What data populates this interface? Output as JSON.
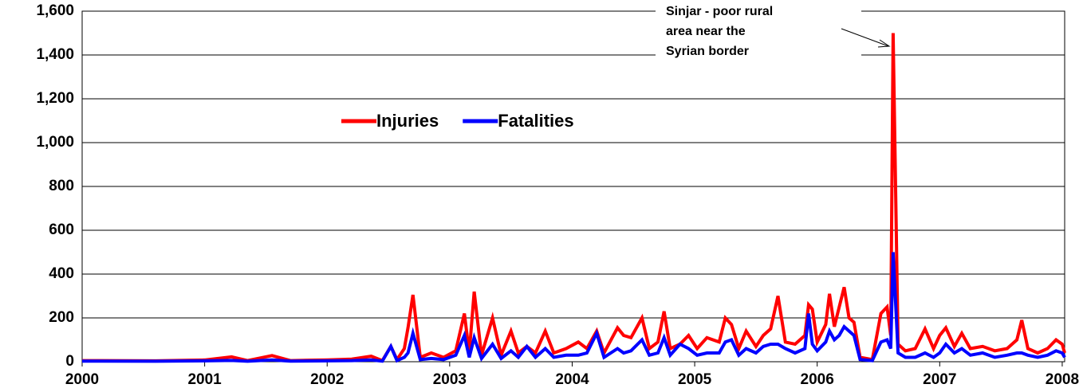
{
  "chart_data": {
    "type": "line",
    "x": [
      2000.0,
      2000.6,
      2001.0,
      2001.22,
      2001.35,
      2001.55,
      2001.7,
      2002.0,
      2002.2,
      2002.36,
      2002.45,
      2002.52,
      2002.57,
      2002.63,
      2002.66,
      2002.7,
      2002.76,
      2002.85,
      2002.95,
      2003.05,
      2003.12,
      2003.16,
      2003.2,
      2003.26,
      2003.35,
      2003.42,
      2003.5,
      2003.56,
      2003.63,
      2003.7,
      2003.78,
      2003.85,
      2003.95,
      2004.05,
      2004.12,
      2004.2,
      2004.26,
      2004.37,
      2004.42,
      2004.48,
      2004.57,
      2004.63,
      2004.7,
      2004.75,
      2004.8,
      2004.88,
      2004.95,
      2005.02,
      2005.1,
      2005.2,
      2005.25,
      2005.3,
      2005.36,
      2005.42,
      2005.5,
      2005.56,
      2005.62,
      2005.68,
      2005.74,
      2005.82,
      2005.9,
      2005.93,
      2005.96,
      2006.0,
      2006.07,
      2006.1,
      2006.14,
      2006.18,
      2006.22,
      2006.26,
      2006.3,
      2006.35,
      2006.45,
      2006.52,
      2006.57,
      2006.6,
      2006.62,
      2006.66,
      2006.72,
      2006.8,
      2006.88,
      2006.95,
      2007.0,
      2007.05,
      2007.12,
      2007.18,
      2007.25,
      2007.35,
      2007.45,
      2007.55,
      2007.63,
      2007.67,
      2007.72,
      2007.8,
      2007.88,
      2007.95,
      2008.0,
      2008.02
    ],
    "series": [
      {
        "name": "Injuries",
        "color": "#ff0000",
        "values": [
          5,
          4,
          8,
          22,
          5,
          28,
          5,
          8,
          12,
          25,
          5,
          70,
          10,
          60,
          155,
          305,
          20,
          40,
          20,
          50,
          220,
          40,
          320,
          30,
          200,
          30,
          140,
          40,
          70,
          40,
          140,
          40,
          60,
          90,
          60,
          140,
          40,
          155,
          120,
          110,
          200,
          60,
          90,
          230,
          60,
          80,
          120,
          60,
          110,
          90,
          200,
          170,
          60,
          140,
          70,
          120,
          150,
          300,
          90,
          80,
          120,
          260,
          240,
          90,
          170,
          310,
          160,
          250,
          340,
          200,
          180,
          20,
          10,
          220,
          250,
          120,
          1500,
          80,
          50,
          60,
          150,
          60,
          120,
          155,
          70,
          130,
          60,
          70,
          50,
          60,
          100,
          190,
          60,
          40,
          60,
          100,
          80,
          40
        ]
      },
      {
        "name": "Fatalities",
        "color": "#0000ff",
        "values": [
          3,
          2,
          4,
          6,
          2,
          8,
          3,
          4,
          5,
          8,
          3,
          70,
          5,
          20,
          40,
          130,
          10,
          15,
          10,
          30,
          120,
          20,
          110,
          15,
          80,
          15,
          50,
          20,
          70,
          20,
          60,
          20,
          30,
          30,
          40,
          130,
          20,
          60,
          40,
          50,
          100,
          30,
          40,
          110,
          30,
          80,
          60,
          30,
          40,
          40,
          90,
          100,
          30,
          60,
          40,
          70,
          80,
          80,
          60,
          40,
          60,
          220,
          80,
          50,
          90,
          140,
          100,
          120,
          160,
          140,
          120,
          10,
          5,
          90,
          100,
          60,
          500,
          40,
          20,
          20,
          40,
          20,
          40,
          80,
          40,
          60,
          30,
          40,
          20,
          30,
          40,
          40,
          30,
          20,
          30,
          50,
          40,
          20
        ]
      }
    ],
    "xlim": [
      2000,
      2008.02
    ],
    "xticks": [
      2000,
      2001,
      2002,
      2003,
      2004,
      2005,
      2006,
      2007,
      2008
    ],
    "ylim": [
      0,
      1600
    ],
    "yticks": [
      0,
      200,
      400,
      600,
      800,
      {
        "value": 1000,
        "label": "1,000"
      },
      {
        "value": 1200,
        "label": "1,200"
      },
      {
        "value": 1400,
        "label": "1,400"
      },
      {
        "value": 1600,
        "label": "1,600"
      }
    ],
    "grid": true,
    "legend": "center",
    "annotation": [
      "Sinjar - poor rural",
      "area near the",
      "Syrian border"
    ]
  }
}
